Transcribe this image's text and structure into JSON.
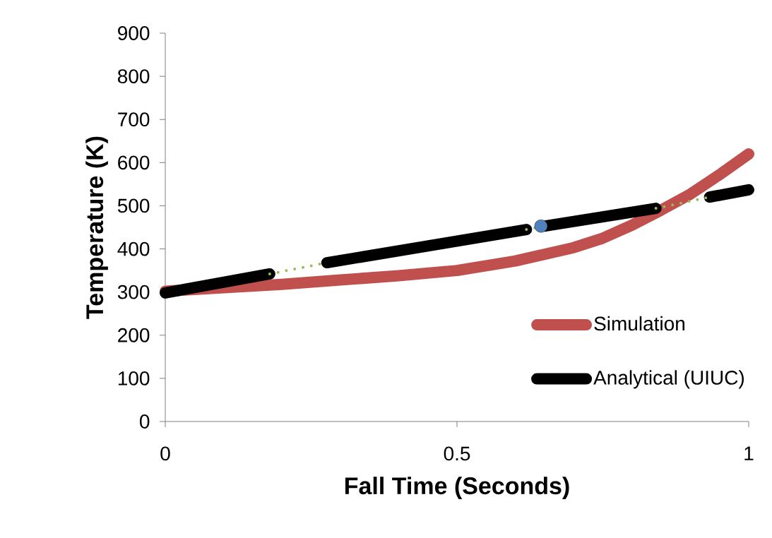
{
  "chart_data": {
    "type": "line",
    "xlabel": "Fall Time (Seconds)",
    "ylabel": "Temperature (K)",
    "xlim": [
      0,
      1
    ],
    "xticks": [
      0,
      0.5,
      1
    ],
    "ylim": [
      0,
      900
    ],
    "yticks": [
      0,
      100,
      200,
      300,
      400,
      500,
      600,
      700,
      800,
      900
    ],
    "grid": false,
    "legend": "right",
    "marker": "none",
    "line_style": "solid",
    "series": [
      {
        "name": "Simulation",
        "color": "#c0504d",
        "x": [
          0,
          0.1,
          0.2,
          0.3,
          0.4,
          0.5,
          0.6,
          0.7,
          0.75,
          0.8,
          0.85,
          0.9,
          0.95,
          1
        ],
        "values": [
          302,
          310,
          318,
          328,
          338,
          350,
          372,
          403,
          425,
          455,
          490,
          527,
          572,
          620
        ]
      },
      {
        "name": "Analytical (UIUC)",
        "color": "#000000",
        "x": [
          0,
          0.179,
          0.2,
          0.277,
          0.619,
          0.63,
          0.651,
          0.841,
          0.9,
          0.933,
          1
        ],
        "values": [
          298,
          342,
          null,
          368,
          445,
          null,
          453,
          494,
          null,
          520,
          537
        ]
      },
      {
        "color": "#9bbb59",
        "line_style": "dotted",
        "x": [
          0.179,
          0.277,
          0.3,
          0.619,
          0.635,
          0.7,
          0.841,
          0.933
        ],
        "values": [
          342,
          368,
          null,
          445,
          449,
          null,
          494,
          520
        ]
      },
      {
        "type": "scatter",
        "marker": "circle",
        "color": "#4f81bd",
        "x": [
          0.644
        ],
        "values": [
          453
        ]
      }
    ]
  }
}
